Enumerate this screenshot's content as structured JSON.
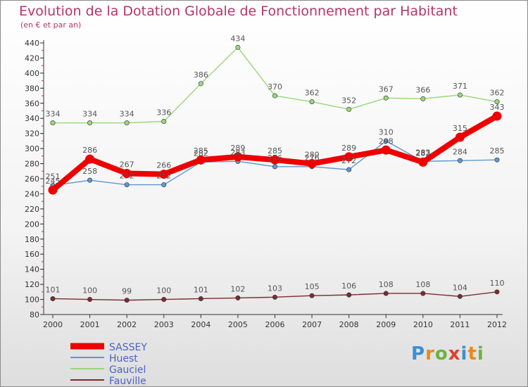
{
  "header": {
    "title": "Evolution de la Dotation Globale de Fonctionnement par Habitant",
    "subtitle": "(en € et par an)"
  },
  "logo": {
    "text": "Proxiti",
    "colors": [
      "#3a8fd6",
      "#e88a1a",
      "#6cb33e",
      "#e0402a",
      "#3a8fd6",
      "#e88a1a",
      "#6cb33e"
    ]
  },
  "chart_data": {
    "type": "line",
    "title": "Evolution de la Dotation Globale de Fonctionnement par Habitant",
    "subtitle": "(en € et par an)",
    "xlabel": "",
    "ylabel": "",
    "categories": [
      "2000",
      "2001",
      "2002",
      "2003",
      "2004",
      "2005",
      "2006",
      "2007",
      "2008",
      "2009",
      "2010",
      "2011",
      "2012"
    ],
    "ylim": [
      80,
      440
    ],
    "yticks": [
      80,
      100,
      120,
      140,
      160,
      180,
      200,
      220,
      240,
      260,
      280,
      300,
      320,
      340,
      360,
      380,
      400,
      420,
      440
    ],
    "grid": false,
    "legend": "bottom-left",
    "series": [
      {
        "name": "SASSEY",
        "color": "#ee0000",
        "emphasis": true,
        "values": [
          245,
          286,
          267,
          266,
          285,
          289,
          285,
          280,
          289,
          298,
          282,
          315,
          343
        ]
      },
      {
        "name": "Huest",
        "color": "#5f97cf",
        "emphasis": false,
        "values": [
          251,
          258,
          252,
          252,
          282,
          283,
          276,
          276,
          272,
          310,
          283,
          284,
          285
        ]
      },
      {
        "name": "Gauciel",
        "color": "#9ad77c",
        "emphasis": false,
        "values": [
          334,
          334,
          334,
          336,
          386,
          434,
          370,
          362,
          352,
          367,
          366,
          371,
          362
        ]
      },
      {
        "name": "Fauville",
        "color": "#7a2d30",
        "emphasis": false,
        "values": [
          101,
          100,
          99,
          100,
          101,
          102,
          103,
          105,
          106,
          108,
          108,
          104,
          110
        ]
      }
    ]
  }
}
